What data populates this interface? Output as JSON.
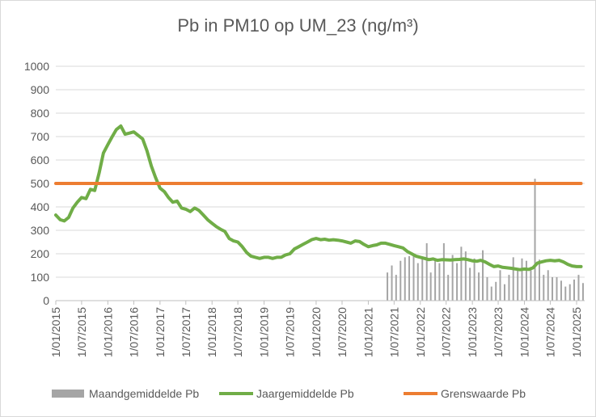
{
  "chart_data": {
    "type": "line",
    "title": "Pb in PM10 op UM_23 (ng/m³)",
    "ylim": [
      0,
      1000
    ],
    "yticks": [
      0,
      100,
      200,
      300,
      400,
      500,
      600,
      700,
      800,
      900,
      1000
    ],
    "xlim": [
      "2015-01-01",
      "2025-01-01"
    ],
    "xticks": [
      "1/01/2015",
      "1/07/2015",
      "1/01/2016",
      "1/07/2016",
      "1/01/2017",
      "1/07/2017",
      "1/01/2018",
      "1/07/2018",
      "1/01/2019",
      "1/07/2019",
      "1/01/2020",
      "1/07/2020",
      "1/01/2021",
      "1/07/2021",
      "1/01/2022",
      "1/07/2022",
      "1/01/2023",
      "1/07/2023",
      "1/01/2024",
      "1/07/2024",
      "1/01/2025"
    ],
    "grid": "horizontal",
    "legend_position": "bottom",
    "series": [
      {
        "name": "Maandgemiddelde Pb",
        "kind": "bar",
        "color": "#a5a5a5",
        "points": [
          [
            "2021-05-15",
            120
          ],
          [
            "2021-06-15",
            150
          ],
          [
            "2021-07-15",
            110
          ],
          [
            "2021-08-15",
            170
          ],
          [
            "2021-09-15",
            185
          ],
          [
            "2021-10-15",
            190
          ],
          [
            "2021-11-15",
            200
          ],
          [
            "2021-12-15",
            160
          ],
          [
            "2022-01-15",
            180
          ],
          [
            "2022-02-15",
            245
          ],
          [
            "2022-03-15",
            120
          ],
          [
            "2022-04-15",
            175
          ],
          [
            "2022-05-15",
            160
          ],
          [
            "2022-06-15",
            245
          ],
          [
            "2022-07-15",
            110
          ],
          [
            "2022-08-15",
            195
          ],
          [
            "2022-09-15",
            160
          ],
          [
            "2022-10-15",
            230
          ],
          [
            "2022-11-15",
            210
          ],
          [
            "2022-12-15",
            140
          ],
          [
            "2023-01-15",
            180
          ],
          [
            "2023-02-15",
            120
          ],
          [
            "2023-03-15",
            215
          ],
          [
            "2023-04-15",
            100
          ],
          [
            "2023-05-15",
            60
          ],
          [
            "2023-06-15",
            80
          ],
          [
            "2023-07-15",
            130
          ],
          [
            "2023-08-15",
            70
          ],
          [
            "2023-09-15",
            110
          ],
          [
            "2023-10-15",
            185
          ],
          [
            "2023-11-15",
            130
          ],
          [
            "2023-12-15",
            180
          ],
          [
            "2024-01-15",
            170
          ],
          [
            "2024-02-15",
            130
          ],
          [
            "2024-03-15",
            520
          ],
          [
            "2024-04-15",
            175
          ],
          [
            "2024-05-15",
            110
          ],
          [
            "2024-06-15",
            130
          ],
          [
            "2024-07-15",
            100
          ],
          [
            "2024-08-15",
            100
          ],
          [
            "2024-09-15",
            85
          ],
          [
            "2024-10-15",
            60
          ],
          [
            "2024-11-15",
            70
          ],
          [
            "2024-12-15",
            90
          ],
          [
            "2025-01-15",
            110
          ],
          [
            "2025-02-15",
            75
          ]
        ]
      },
      {
        "name": "Jaargemiddelde Pb",
        "kind": "line",
        "color": "#70ad47",
        "points": [
          [
            "2015-01-01",
            365
          ],
          [
            "2015-02-01",
            345
          ],
          [
            "2015-03-01",
            340
          ],
          [
            "2015-04-01",
            355
          ],
          [
            "2015-05-01",
            395
          ],
          [
            "2015-06-01",
            420
          ],
          [
            "2015-07-01",
            440
          ],
          [
            "2015-08-01",
            435
          ],
          [
            "2015-09-01",
            475
          ],
          [
            "2015-10-01",
            470
          ],
          [
            "2015-11-01",
            545
          ],
          [
            "2015-12-01",
            630
          ],
          [
            "2016-01-01",
            665
          ],
          [
            "2016-02-01",
            700
          ],
          [
            "2016-03-01",
            730
          ],
          [
            "2016-04-01",
            745
          ],
          [
            "2016-05-01",
            710
          ],
          [
            "2016-06-01",
            715
          ],
          [
            "2016-07-01",
            720
          ],
          [
            "2016-08-01",
            705
          ],
          [
            "2016-09-01",
            690
          ],
          [
            "2016-10-01",
            640
          ],
          [
            "2016-11-01",
            575
          ],
          [
            "2016-12-01",
            525
          ],
          [
            "2017-01-01",
            480
          ],
          [
            "2017-02-01",
            465
          ],
          [
            "2017-03-01",
            440
          ],
          [
            "2017-04-01",
            420
          ],
          [
            "2017-05-01",
            425
          ],
          [
            "2017-06-01",
            395
          ],
          [
            "2017-07-01",
            390
          ],
          [
            "2017-08-01",
            380
          ],
          [
            "2017-09-01",
            395
          ],
          [
            "2017-10-01",
            385
          ],
          [
            "2017-11-01",
            365
          ],
          [
            "2017-12-01",
            345
          ],
          [
            "2018-01-01",
            330
          ],
          [
            "2018-02-01",
            315
          ],
          [
            "2018-03-01",
            305
          ],
          [
            "2018-04-01",
            295
          ],
          [
            "2018-05-01",
            265
          ],
          [
            "2018-06-01",
            255
          ],
          [
            "2018-07-01",
            250
          ],
          [
            "2018-08-01",
            230
          ],
          [
            "2018-09-01",
            205
          ],
          [
            "2018-10-01",
            190
          ],
          [
            "2018-11-01",
            185
          ],
          [
            "2018-12-01",
            180
          ],
          [
            "2019-01-01",
            185
          ],
          [
            "2019-02-01",
            185
          ],
          [
            "2019-03-01",
            180
          ],
          [
            "2019-04-01",
            185
          ],
          [
            "2019-05-01",
            185
          ],
          [
            "2019-06-01",
            195
          ],
          [
            "2019-07-01",
            200
          ],
          [
            "2019-08-01",
            220
          ],
          [
            "2019-09-01",
            230
          ],
          [
            "2019-10-01",
            240
          ],
          [
            "2019-11-01",
            250
          ],
          [
            "2019-12-01",
            260
          ],
          [
            "2020-01-01",
            265
          ],
          [
            "2020-02-01",
            260
          ],
          [
            "2020-03-01",
            262
          ],
          [
            "2020-04-01",
            258
          ],
          [
            "2020-05-01",
            260
          ],
          [
            "2020-06-01",
            258
          ],
          [
            "2020-07-01",
            255
          ],
          [
            "2020-08-01",
            250
          ],
          [
            "2020-09-01",
            245
          ],
          [
            "2020-10-01",
            255
          ],
          [
            "2020-11-01",
            252
          ],
          [
            "2020-12-01",
            240
          ],
          [
            "2021-01-01",
            230
          ],
          [
            "2021-02-01",
            235
          ],
          [
            "2021-03-01",
            238
          ],
          [
            "2021-04-01",
            245
          ],
          [
            "2021-05-01",
            245
          ],
          [
            "2021-06-01",
            240
          ],
          [
            "2021-07-01",
            235
          ],
          [
            "2021-08-01",
            230
          ],
          [
            "2021-09-01",
            225
          ],
          [
            "2021-10-01",
            210
          ],
          [
            "2021-11-01",
            200
          ],
          [
            "2021-12-01",
            190
          ],
          [
            "2022-01-01",
            185
          ],
          [
            "2022-02-01",
            180
          ],
          [
            "2022-03-01",
            175
          ],
          [
            "2022-04-01",
            178
          ],
          [
            "2022-05-01",
            172
          ],
          [
            "2022-06-01",
            175
          ],
          [
            "2022-07-01",
            174
          ],
          [
            "2022-08-01",
            173
          ],
          [
            "2022-09-01",
            175
          ],
          [
            "2022-10-01",
            176
          ],
          [
            "2022-11-01",
            178
          ],
          [
            "2022-12-01",
            175
          ],
          [
            "2023-01-01",
            170
          ],
          [
            "2023-02-01",
            168
          ],
          [
            "2023-03-01",
            172
          ],
          [
            "2023-04-01",
            165
          ],
          [
            "2023-05-01",
            155
          ],
          [
            "2023-06-01",
            145
          ],
          [
            "2023-07-01",
            148
          ],
          [
            "2023-08-01",
            142
          ],
          [
            "2023-09-01",
            140
          ],
          [
            "2023-10-01",
            138
          ],
          [
            "2023-11-01",
            135
          ],
          [
            "2023-12-01",
            132
          ],
          [
            "2024-01-01",
            135
          ],
          [
            "2024-02-01",
            133
          ],
          [
            "2024-03-01",
            140
          ],
          [
            "2024-04-01",
            160
          ],
          [
            "2024-05-01",
            165
          ],
          [
            "2024-06-01",
            170
          ],
          [
            "2024-07-01",
            172
          ],
          [
            "2024-08-01",
            170
          ],
          [
            "2024-09-01",
            172
          ],
          [
            "2024-10-01",
            165
          ],
          [
            "2024-11-01",
            155
          ],
          [
            "2024-12-01",
            148
          ],
          [
            "2025-01-01",
            145
          ],
          [
            "2025-02-01",
            145
          ]
        ]
      },
      {
        "name": "Grenswaarde Pb",
        "kind": "line",
        "color": "#ed7d31",
        "points": [
          [
            "2015-01-01",
            500
          ],
          [
            "2025-02-01",
            500
          ]
        ]
      }
    ]
  }
}
